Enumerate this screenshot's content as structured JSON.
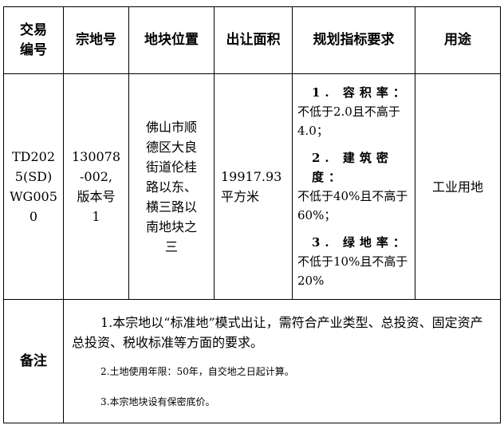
{
  "headers": [
    "交易\n编号",
    "宗地号",
    "地块位置",
    "出让面积",
    "规划指标要求",
    "用途"
  ],
  "row": {
    "trade_no": "TD202\n5(SD)\nWG005\n0",
    "parcel_no": "130078\n-002,\n版本号\n1",
    "location": "佛山市顺\n德区大良\n街道伦桂\n路以东、\n横三路以\n南地块之\n三",
    "area": "19917.93\n平方米",
    "planning": [
      {
        "title": "1. 容积率：",
        "body": "不低于2.0且不高于4.0；"
      },
      {
        "title": "2. 建筑密度：",
        "body": "不低于40%且不高于60%；"
      },
      {
        "title": "3. 绿地率：",
        "body": "不低于10%且不高于20%"
      }
    ],
    "use": "工业用地"
  },
  "remarks": {
    "label": "备注",
    "items": [
      "1.本宗地以“标准地”模式出让，需符合产业类型、总投资、固定资产总投资、税收标准等方面的要求。",
      "2.土地使用年限：50年，自交地之日起计算。",
      "3.本宗地块设有保密底价。"
    ]
  }
}
